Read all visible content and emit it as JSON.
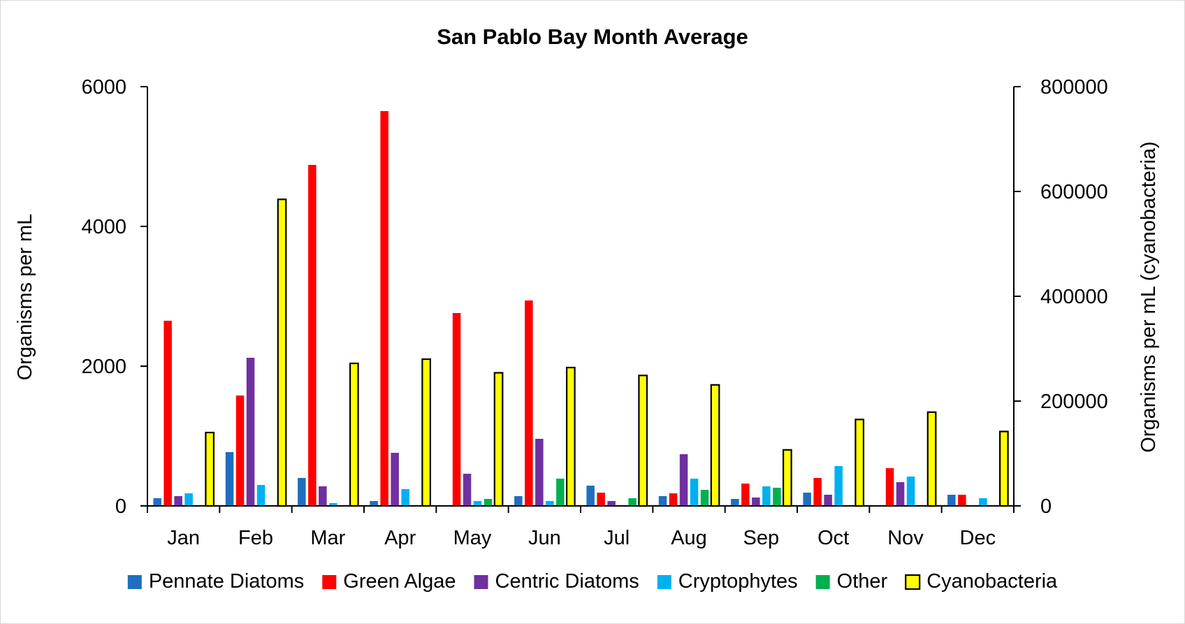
{
  "chart_data": {
    "type": "bar",
    "title": "San Pablo Bay Month Average",
    "categories": [
      "Jan",
      "Feb",
      "Mar",
      "Apr",
      "May",
      "Jun",
      "Jul",
      "Aug",
      "Sep",
      "Oct",
      "Nov",
      "Dec"
    ],
    "ylabel": "Organisms per mL",
    "y2label": "Organisms per mL (cyanobacteria)",
    "ylim": [
      0,
      6000
    ],
    "y2lim": [
      0,
      800000
    ],
    "yticks": [
      "0",
      "2000",
      "4000",
      "6000"
    ],
    "y2ticks": [
      "0",
      "200000",
      "400000",
      "600000",
      "800000"
    ],
    "grid": false,
    "legend": "bottom",
    "series": [
      {
        "name": "Pennate Diatoms",
        "color": "#1f6fc0",
        "axis": "left",
        "values": [
          110,
          770,
          400,
          70,
          0,
          140,
          290,
          140,
          100,
          190,
          0,
          160
        ]
      },
      {
        "name": "Green Algae",
        "color": "#ff0000",
        "axis": "left",
        "values": [
          2650,
          1580,
          4880,
          5650,
          2760,
          2940,
          190,
          180,
          320,
          400,
          540,
          160
        ]
      },
      {
        "name": "Centric Diatoms",
        "color": "#7030a0",
        "axis": "left",
        "values": [
          140,
          2120,
          280,
          760,
          460,
          960,
          70,
          740,
          120,
          160,
          340,
          0
        ]
      },
      {
        "name": "Cryptophytes",
        "color": "#00b0f0",
        "axis": "left",
        "values": [
          180,
          300,
          40,
          240,
          70,
          70,
          0,
          390,
          280,
          570,
          420,
          110
        ]
      },
      {
        "name": "Other",
        "color": "#00b050",
        "axis": "left",
        "values": [
          0,
          0,
          0,
          0,
          100,
          390,
          110,
          230,
          260,
          0,
          0,
          0
        ]
      },
      {
        "name": "Cyanobacteria",
        "color": "#ffff00",
        "axis": "right",
        "outline": "#000000",
        "values": [
          140000,
          585000,
          272000,
          280000,
          254000,
          264000,
          249000,
          231000,
          107000,
          165000,
          179000,
          142000
        ]
      }
    ]
  }
}
